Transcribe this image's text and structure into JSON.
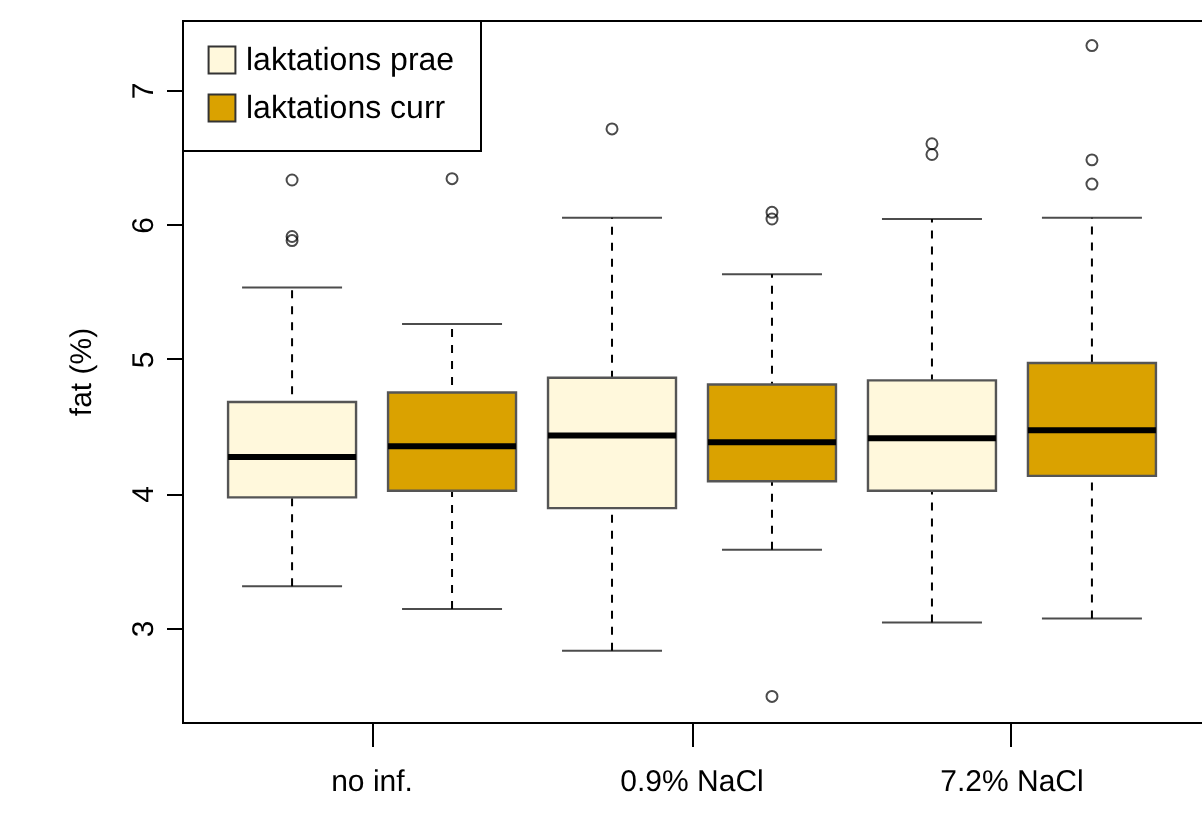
{
  "chart_data": {
    "type": "box",
    "ylabel": "fat (%)",
    "categories": [
      "no inf.",
      "0.9% NaCl",
      "7.2% NaCl"
    ],
    "ylim": [
      2.3,
      7.52
    ],
    "yticks": [
      3,
      4,
      5,
      6,
      7
    ],
    "legend": "top left",
    "series": [
      {
        "name": "laktations prae",
        "color": "#fff8dc",
        "boxes": [
          {
            "low": 3.31,
            "q1": 3.97,
            "median": 4.27,
            "q3": 4.68,
            "high": 5.53,
            "outliers": [
              6.33,
              5.91,
              5.88
            ]
          },
          {
            "low": 2.83,
            "q1": 3.89,
            "median": 4.43,
            "q3": 4.86,
            "high": 6.05,
            "outliers": [
              6.71
            ]
          },
          {
            "low": 3.04,
            "q1": 4.02,
            "median": 4.41,
            "q3": 4.84,
            "high": 6.04,
            "outliers": [
              6.6,
              6.52
            ]
          }
        ]
      },
      {
        "name": "laktations curr",
        "color": "#daa200",
        "boxes": [
          {
            "low": 3.14,
            "q1": 4.02,
            "median": 4.35,
            "q3": 4.75,
            "high": 5.26,
            "outliers": [
              6.34
            ]
          },
          {
            "low": 3.58,
            "q1": 4.09,
            "median": 4.38,
            "q3": 4.81,
            "high": 5.63,
            "outliers": [
              6.09,
              6.04,
              2.49
            ]
          },
          {
            "low": 3.07,
            "q1": 4.13,
            "median": 4.47,
            "q3": 4.97,
            "high": 6.05,
            "outliers": [
              7.33,
              6.48,
              6.3
            ]
          }
        ]
      }
    ]
  }
}
